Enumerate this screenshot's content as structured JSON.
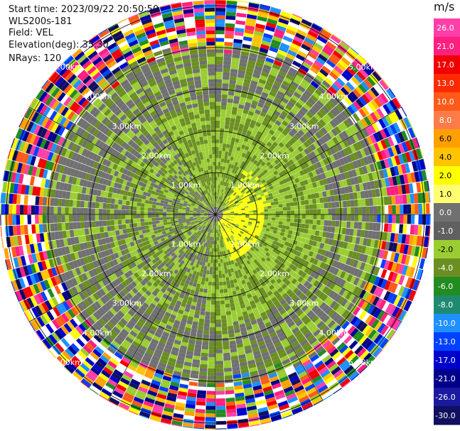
{
  "header": {
    "start_time": "Start time: 2023/09/22 20:50:50",
    "instrument": "WLS200s-181",
    "field": "Field: VEL",
    "elevation": "Elevation(deg): 35.30",
    "nrays": "NRays: 120"
  },
  "chart_data": {
    "type": "heatmap",
    "projection": "polar-ppi",
    "field": "VEL",
    "n_rays": 120,
    "range_rings_km": [
      1,
      2,
      3,
      4,
      5
    ],
    "ring_labels": [
      {
        "text": "1.00km"
      },
      {
        "text": "2.00km"
      },
      {
        "text": "3.00km"
      },
      {
        "text": "4.00km"
      },
      {
        "text": "5.00km"
      }
    ],
    "colorbar": {
      "unit": "m/s",
      "ticks": [
        "26.0",
        "21.0",
        "17.0",
        "13.0",
        "10.0",
        "8.0",
        "6.0",
        "4.0",
        "2.0",
        "1.0",
        "0.0",
        "-1.0",
        "-2.0",
        "-4.0",
        "-6.0",
        "-8.0",
        "-10.0",
        "-13.0",
        "-17.0",
        "-21.0",
        "-26.0",
        "-30.0"
      ],
      "colors": [
        "#ff3fa8",
        "#ff1f7f",
        "#f00000",
        "#ff2a00",
        "#ff5a1a",
        "#ff7c48",
        "#ffa000",
        "#ffc400",
        "#ffff00",
        "#ffff70",
        "#707070",
        "#606060",
        "#9acd32",
        "#6b8e23",
        "#228b22",
        "#1f8a70",
        "#1e90ff",
        "#0040ff",
        "#0000cd",
        "#00008b",
        "#1a1aa0",
        "#101060"
      ]
    },
    "regions": {
      "inner_ring_km": 4.0,
      "near_colors": [
        "#9acd32",
        "#6b8e23",
        "#707070"
      ],
      "positive_patch_color": "#ffff00",
      "far_colors": [
        "#ff3fa8",
        "#0000cd",
        "#ff1f7f",
        "#ffff00",
        "#1e90ff",
        "#f00000",
        "#00008b",
        "#ffc400",
        "#228b22",
        "#ff5a1a",
        "#101060",
        "#9acd32",
        "#0040ff",
        "#ffa000"
      ]
    }
  }
}
